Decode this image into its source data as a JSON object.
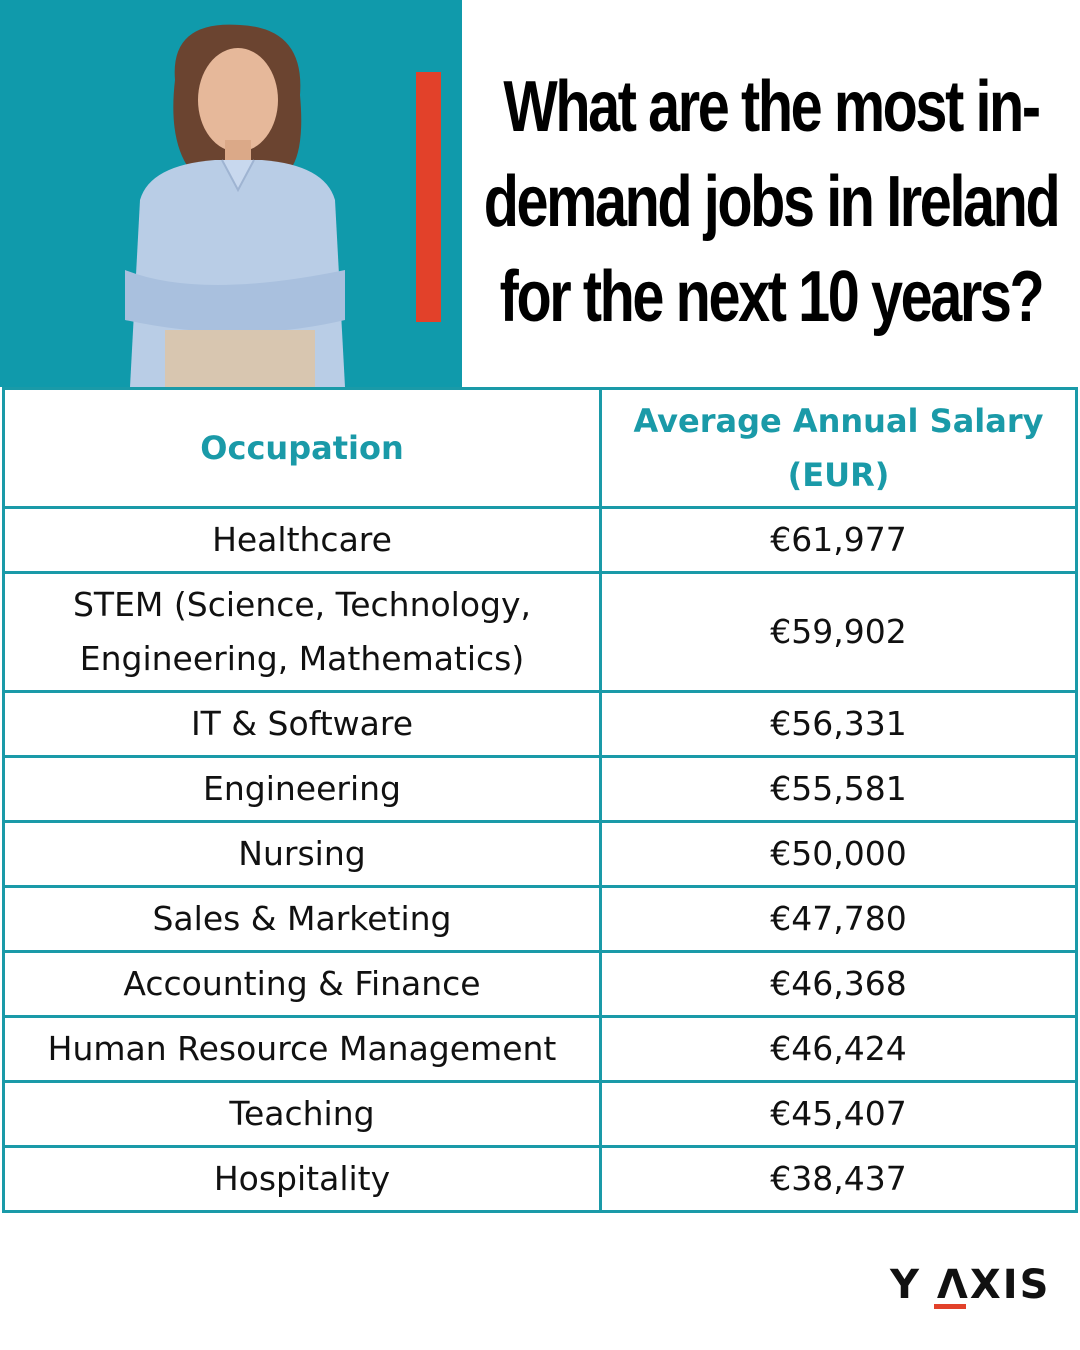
{
  "header": {
    "title": "What are the most in-demand jobs in Ireland for the next 10 years?"
  },
  "table": {
    "columns": [
      "Occupation",
      "Average Annual Salary (EUR)"
    ],
    "rows": [
      [
        "Healthcare",
        "€61,977"
      ],
      [
        "STEM (Science, Technology, Engineering, Mathematics)",
        "€59,902"
      ],
      [
        "IT & Software",
        "€56,331"
      ],
      [
        "Engineering",
        "€55,581"
      ],
      [
        "Nursing",
        "€50,000"
      ],
      [
        "Sales & Marketing",
        "€47,780"
      ],
      [
        "Accounting & Finance",
        "€46,368"
      ],
      [
        "Human Resource Management",
        "€46,424"
      ],
      [
        "Teaching",
        "€45,407"
      ],
      [
        "Hospitality",
        "€38,437"
      ]
    ]
  },
  "footer": {
    "logo": "Y ΛXIS"
  }
}
